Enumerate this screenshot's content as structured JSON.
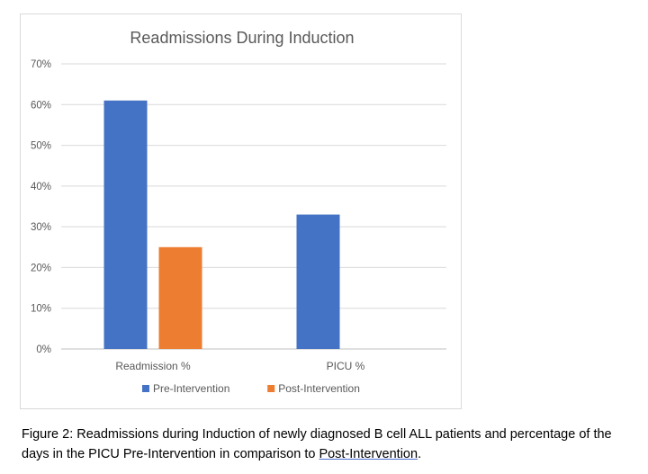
{
  "chart_data": {
    "type": "bar",
    "title": "Readmissions During Induction",
    "categories": [
      "Readmission %",
      "PICU %"
    ],
    "series": [
      {
        "name": "Pre-Intervention",
        "color": "#4472C4",
        "values": [
          61,
          33
        ]
      },
      {
        "name": "Post-Intervention",
        "color": "#ED7D31",
        "values": [
          25,
          null
        ]
      }
    ],
    "y_ticks": [
      "0%",
      "10%",
      "20%",
      "30%",
      "40%",
      "50%",
      "60%",
      "70%"
    ],
    "ylim": [
      0,
      70
    ],
    "grid": true,
    "legend_position": "bottom"
  },
  "caption": {
    "text": "Figure 2: Readmissions during Induction of newly diagnosed B cell ALL patients and percentage of the days in the PICU Pre-Intervention in comparison to ",
    "link": "Post-Intervention",
    "end": "."
  }
}
